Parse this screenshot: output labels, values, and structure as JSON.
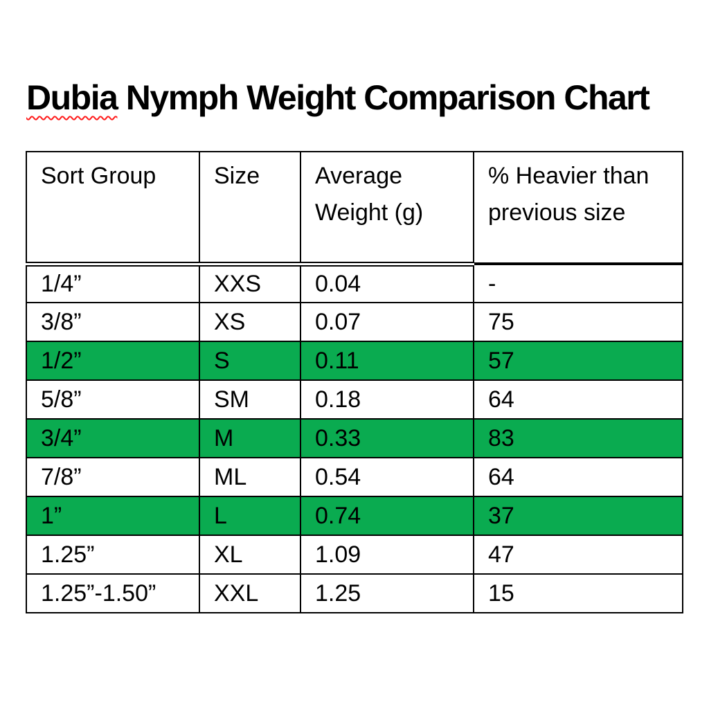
{
  "title": {
    "misspelled_word": "Dubia",
    "rest": " Nymph Weight Comparison Chart"
  },
  "colors": {
    "highlight-green": "#0aab50",
    "squiggle-red": "#ff1a1a",
    "text-black": "#000000",
    "border-black": "#000000",
    "page-white": "#ffffff"
  },
  "table": {
    "headers": [
      "Sort Group",
      "Size",
      "Average Weight (g)",
      "% Heavier than previous size"
    ],
    "rows": [
      {
        "sort_group": "1/4”",
        "size": "XXS",
        "avg_weight": "0.04",
        "pct_heavier": "-",
        "highlighted": false
      },
      {
        "sort_group": "3/8”",
        "size": "XS",
        "avg_weight": "0.07",
        "pct_heavier": "75",
        "highlighted": false
      },
      {
        "sort_group": "1/2”",
        "size": "S",
        "avg_weight": "0.11",
        "pct_heavier": "57",
        "highlighted": true
      },
      {
        "sort_group": "5/8”",
        "size": "SM",
        "avg_weight": "0.18",
        "pct_heavier": "64",
        "highlighted": false
      },
      {
        "sort_group": "3/4”",
        "size": "M",
        "avg_weight": "0.33",
        "pct_heavier": "83",
        "highlighted": true
      },
      {
        "sort_group": "7/8”",
        "size": "ML",
        "avg_weight": "0.54",
        "pct_heavier": "64",
        "highlighted": false
      },
      {
        "sort_group": "1”",
        "size": "L",
        "avg_weight": "0.74",
        "pct_heavier": "37",
        "highlighted": true
      },
      {
        "sort_group": "1.25”",
        "size": "XL",
        "avg_weight": "1.09",
        "pct_heavier": "47",
        "highlighted": false
      },
      {
        "sort_group": "1.25”-1.50”",
        "size": "XXL",
        "avg_weight": "1.25",
        "pct_heavier": "15",
        "highlighted": false
      }
    ]
  }
}
